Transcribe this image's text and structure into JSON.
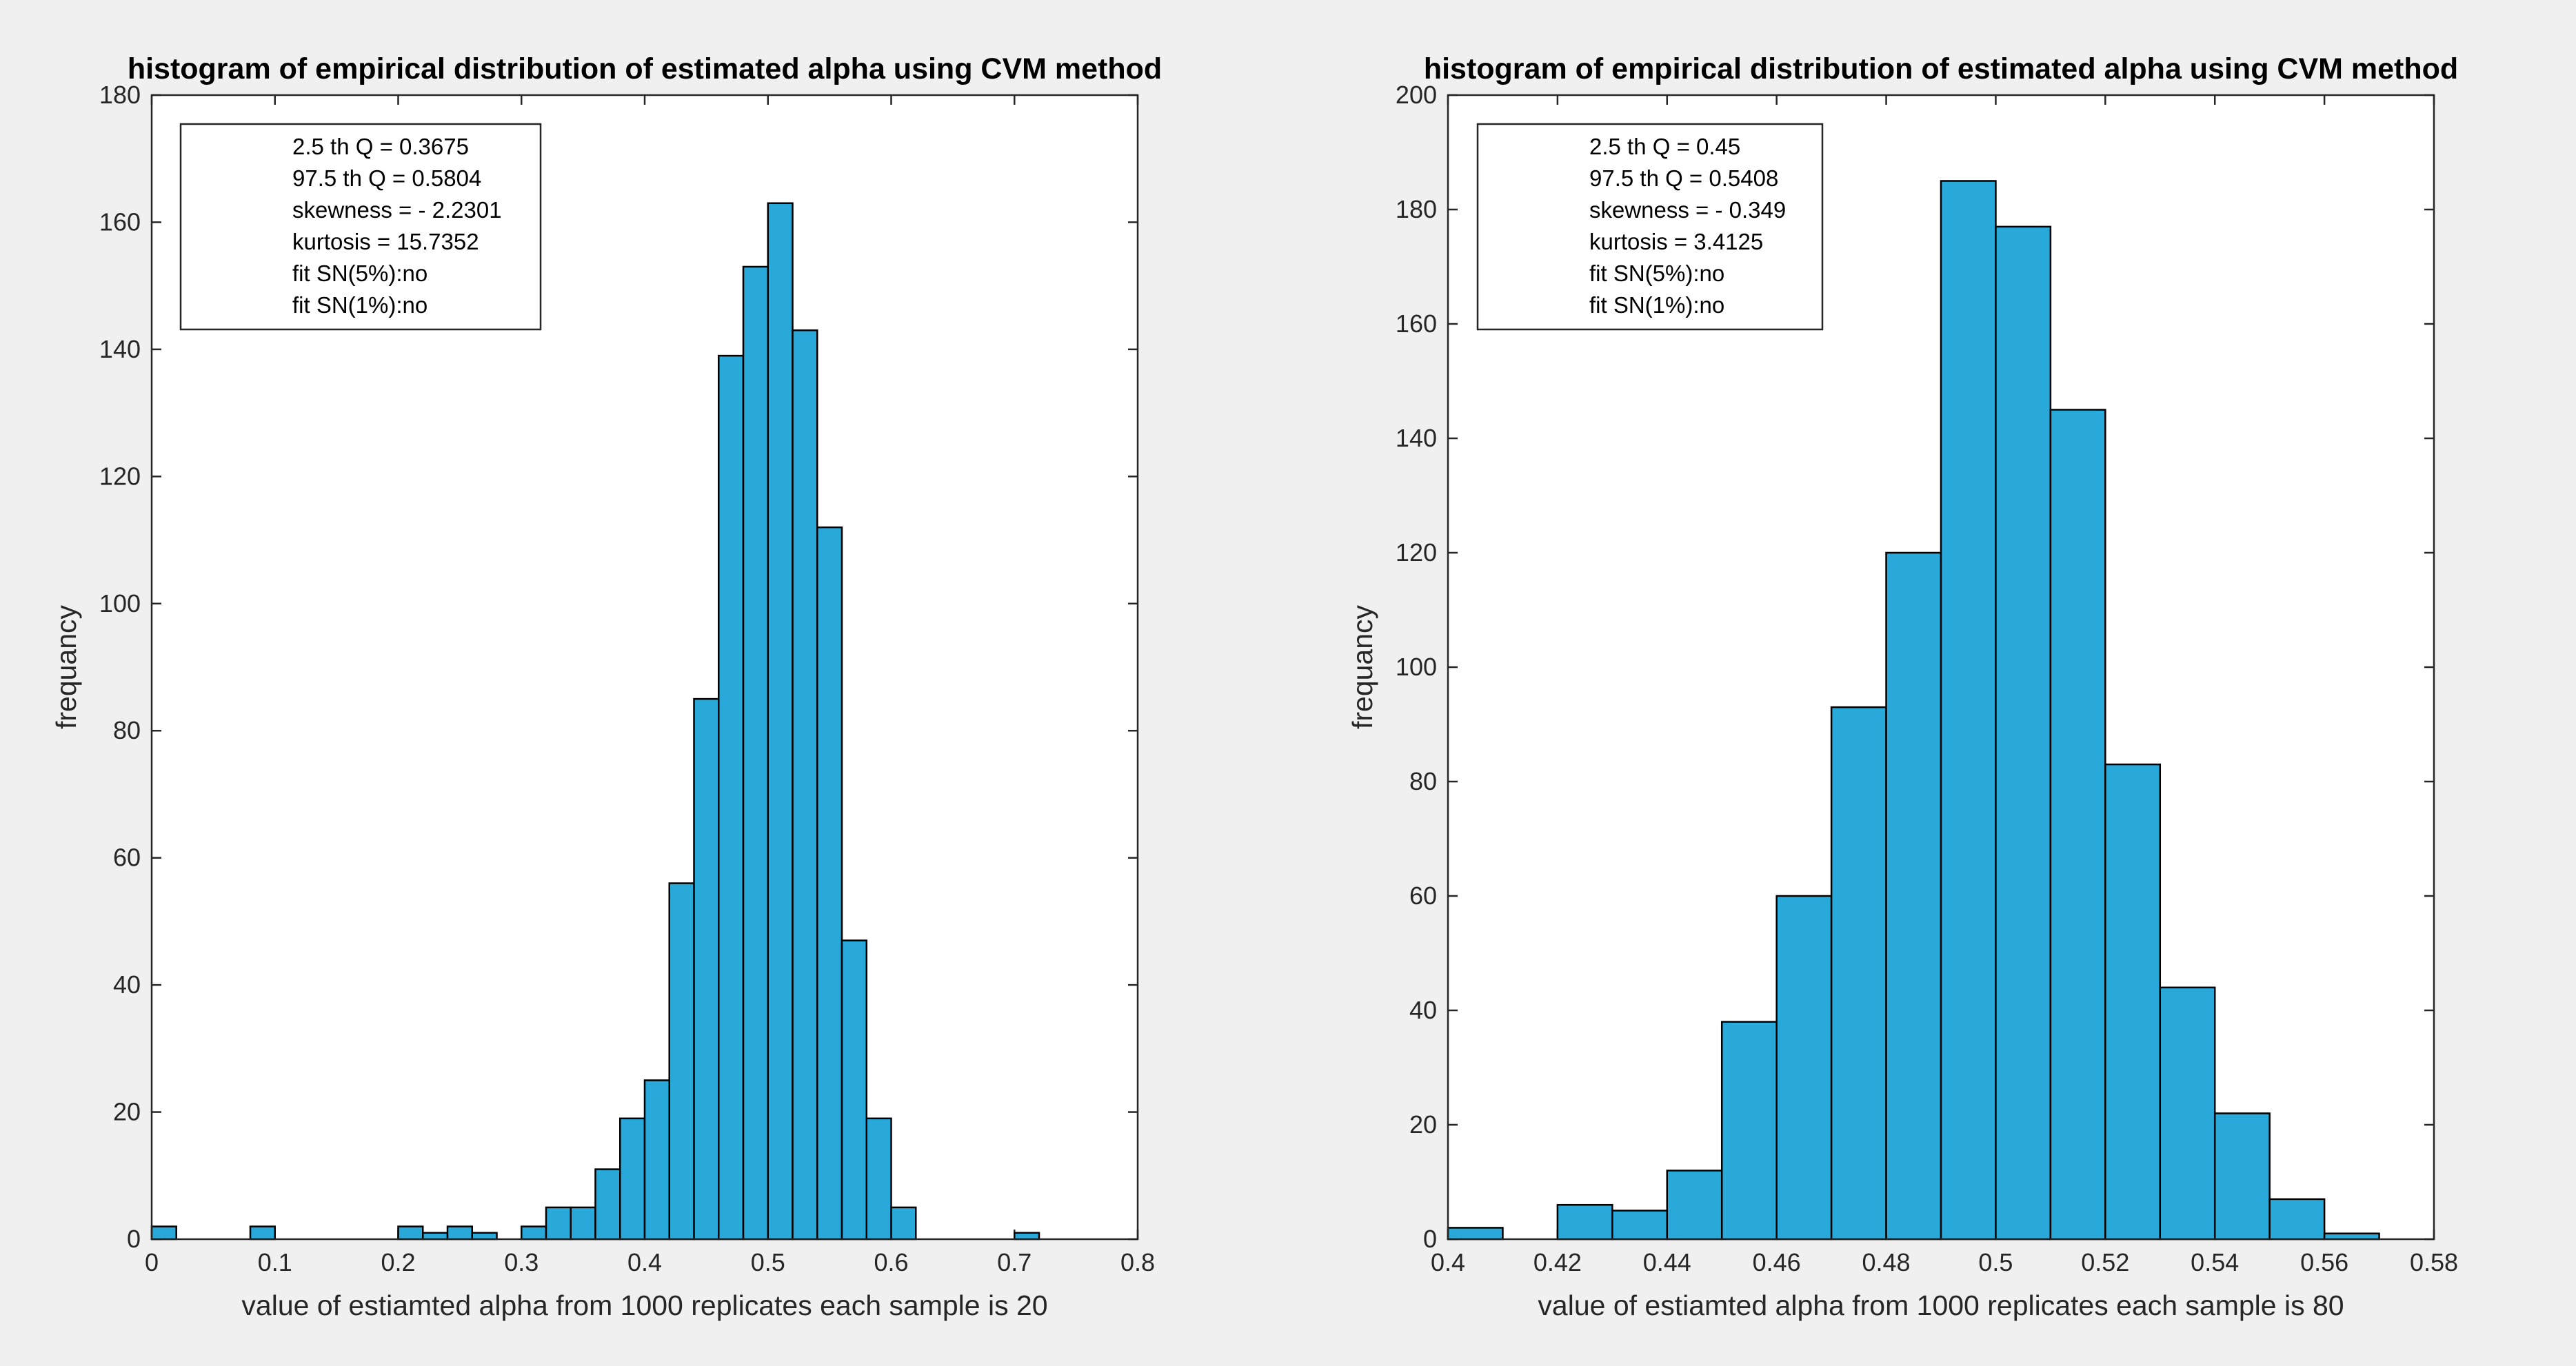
{
  "figure": {
    "background": "#f0f0f0",
    "bar_color": "#29a8da",
    "edge_color": "#000000"
  },
  "chart_data": [
    {
      "type": "bar",
      "subtype": "histogram",
      "title": "histogram of empirical distribution of estimated alpha using CVM method",
      "xlabel": "value of estiamted alpha from 1000 replicates each sample is 20",
      "ylabel": "frequancy",
      "xlim": [
        0,
        0.8
      ],
      "ylim": [
        0,
        180
      ],
      "xticks": [
        0,
        0.1,
        0.2,
        0.3,
        0.4,
        0.5,
        0.6,
        0.7,
        0.8
      ],
      "xtick_labels": [
        "0",
        "0.1",
        "0.2",
        "0.3",
        "0.4",
        "0.5",
        "0.6",
        "0.7",
        "0.8"
      ],
      "yticks": [
        0,
        20,
        40,
        60,
        80,
        100,
        120,
        140,
        160,
        180
      ],
      "ytick_labels": [
        "0",
        "20",
        "40",
        "60",
        "80",
        "100",
        "120",
        "140",
        "160",
        "180"
      ],
      "bin_start": 0,
      "bin_width": 0.02,
      "values": [
        2,
        0,
        0,
        0,
        2,
        0,
        0,
        0,
        0,
        0,
        2,
        1,
        2,
        1,
        0,
        2,
        5,
        5,
        11,
        19,
        25,
        56,
        85,
        139,
        153,
        163,
        143,
        112,
        47,
        19,
        5,
        0,
        0,
        0,
        0,
        1,
        0,
        0,
        0,
        0
      ],
      "legend_position": "top-left",
      "legend": [
        "2.5 th Q = 0.3675",
        "97.5 th Q = 0.5804",
        "skewness = - 2.2301",
        "kurtosis = 15.7352",
        "fit SN(5%):no",
        "fit SN(1%):no"
      ]
    },
    {
      "type": "bar",
      "subtype": "histogram",
      "title": "histogram of empirical distribution of estimated alpha using CVM method",
      "xlabel": "value of estiamted alpha from 1000 replicates each sample is 80",
      "ylabel": "frequancy",
      "xlim": [
        0.4,
        0.58
      ],
      "ylim": [
        0,
        200
      ],
      "xticks": [
        0.4,
        0.42,
        0.44,
        0.46,
        0.48,
        0.5,
        0.52,
        0.54,
        0.56,
        0.58
      ],
      "xtick_labels": [
        "0.4",
        "0.42",
        "0.44",
        "0.46",
        "0.48",
        "0.5",
        "0.52",
        "0.54",
        "0.56",
        "0.58"
      ],
      "yticks": [
        0,
        20,
        40,
        60,
        80,
        100,
        120,
        140,
        160,
        180,
        200
      ],
      "ytick_labels": [
        "0",
        "20",
        "40",
        "60",
        "80",
        "100",
        "120",
        "140",
        "160",
        "180",
        "200"
      ],
      "bin_start": 0.4,
      "bin_width": 0.01,
      "values": [
        2,
        0,
        6,
        5,
        12,
        38,
        60,
        93,
        120,
        185,
        177,
        145,
        83,
        44,
        22,
        7,
        1
      ],
      "legend_position": "top-left",
      "legend": [
        "2.5 th Q = 0.45",
        "97.5 th Q = 0.5408",
        "skewness = - 0.349",
        "kurtosis = 3.4125",
        "fit SN(5%):no",
        "fit SN(1%):no"
      ]
    }
  ]
}
